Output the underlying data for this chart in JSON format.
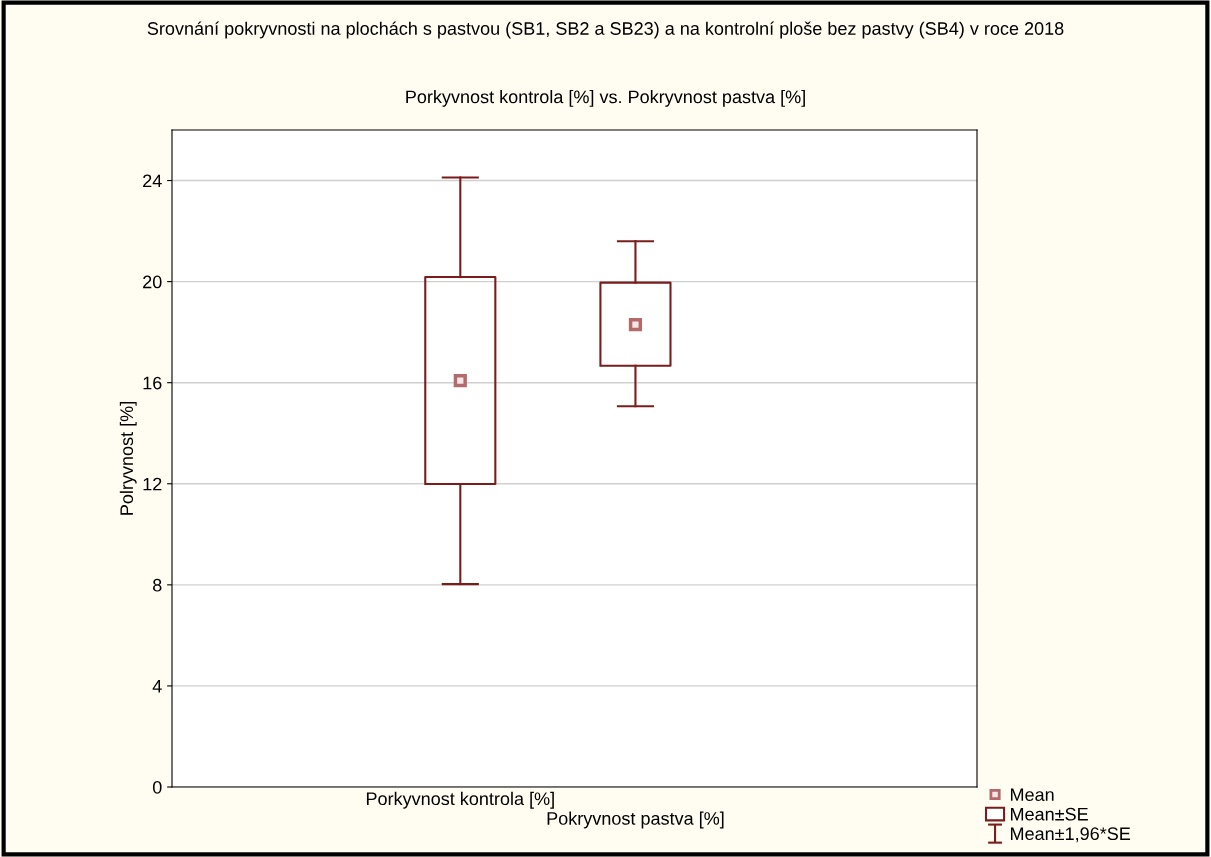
{
  "chart_data": {
    "type": "box",
    "title": "Srovnání pokryvnosti na plochách s pastvou (SB1, SB2 a SB23) a na kontrolní ploše bez pastvy (SB4) v roce 2018",
    "subtitle": "Porkyvnost kontrola [%] vs. Pokryvnost pastva [%]",
    "ylabel": "Polryvnost [%]",
    "categories": [
      "Porkyvnost kontrola [%]",
      "Pokryvnost pastva [%]"
    ],
    "color": "#7a1c1c",
    "marker": "square",
    "boxes": [
      {
        "low": 8.03,
        "q1": 11.99,
        "median": 16.08,
        "q3": 20.18,
        "high": 24.12
      },
      {
        "low": 15.07,
        "q1": 16.67,
        "median": 18.3,
        "q3": 19.96,
        "high": 21.6
      }
    ],
    "annotations": [
      "Mean",
      "Mean±SE",
      "Mean±1,96*SE"
    ],
    "ylim": [
      0,
      26
    ],
    "yticks": [
      0,
      4,
      8,
      12,
      16,
      20,
      24
    ],
    "grid": "y"
  }
}
